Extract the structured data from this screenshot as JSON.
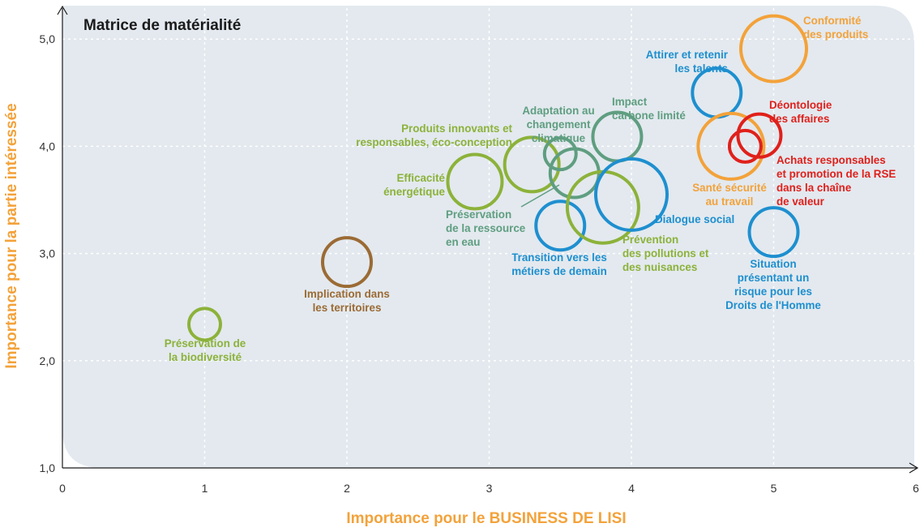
{
  "colors": {
    "green": "#8cb23a",
    "teal": "#5f9e80",
    "blue": "#1e8fcf",
    "orange": "#f3a23a",
    "red": "#e0201b",
    "brown": "#9b6b34",
    "panel": "#e3e9ef",
    "grid": "#ffffff",
    "axis_title": "#f3a23a"
  },
  "chart_data": {
    "type": "scatter",
    "title": "Matrice de matérialité",
    "xlabel": "Importance pour le BUSINESS DE LISI",
    "ylabel": "Importance pour la partie intéressée",
    "xlim": [
      0,
      6
    ],
    "ylim": [
      1,
      5.3
    ],
    "x_ticks": [
      "0",
      "1",
      "2",
      "3",
      "4",
      "5",
      "6"
    ],
    "y_ticks": [
      {
        "value": 1,
        "label": "1,0"
      },
      {
        "value": 2,
        "label": "2,0"
      },
      {
        "value": 3,
        "label": "3,0"
      },
      {
        "value": 4,
        "label": "4,0"
      },
      {
        "value": 5,
        "label": "5,0"
      }
    ],
    "grid": true,
    "points": [
      {
        "label": [
          "Préservation de",
          "la biodiversité"
        ],
        "x": 1.0,
        "y": 2.34,
        "size": 0.3,
        "color": "green"
      },
      {
        "label": [
          "Implication dans",
          "les territoires"
        ],
        "x": 2.0,
        "y": 2.92,
        "size": 0.6,
        "color": "brown"
      },
      {
        "label": [
          "Efficacité",
          "énergétique"
        ],
        "x": 2.9,
        "y": 3.67,
        "size": 0.7,
        "color": "green"
      },
      {
        "label": [
          "Produits innovants et",
          "responsables, éco-conception"
        ],
        "x": 3.3,
        "y": 3.83,
        "size": 0.7,
        "color": "green"
      },
      {
        "label": [
          "Adaptation au",
          "changement",
          "climatique"
        ],
        "x": 3.5,
        "y": 3.93,
        "size": 0.3,
        "color": "teal"
      },
      {
        "label": [
          "Préservation",
          "de la ressource",
          "en eau"
        ],
        "x": 3.6,
        "y": 3.75,
        "size": 0.6,
        "color": "teal"
      },
      {
        "label": [
          "Impact",
          "carbone limité"
        ],
        "x": 3.9,
        "y": 4.09,
        "size": 0.6,
        "color": "teal"
      },
      {
        "label": [
          "Transition vers les",
          "métiers de demain"
        ],
        "x": 3.5,
        "y": 3.26,
        "size": 0.6,
        "color": "blue"
      },
      {
        "label": [
          "Prévention",
          "des pollutions et",
          "des nuisances"
        ],
        "x": 3.8,
        "y": 3.43,
        "size": 1.0,
        "color": "green"
      },
      {
        "label": [
          "Dialogue social"
        ],
        "x": 4.0,
        "y": 3.55,
        "size": 1.0,
        "color": "blue"
      },
      {
        "label": [
          "Attirer et retenir",
          "les talents"
        ],
        "x": 4.6,
        "y": 4.5,
        "size": 0.6,
        "color": "blue"
      },
      {
        "label": [
          "Conformité",
          "des produits"
        ],
        "x": 5.0,
        "y": 4.91,
        "size": 0.9,
        "color": "orange"
      },
      {
        "label": [
          "Santé sécurité",
          "au travail"
        ],
        "x": 4.7,
        "y": 4.0,
        "size": 0.9,
        "color": "orange"
      },
      {
        "label": [
          "Déontologie",
          "des affaires"
        ],
        "x": 4.9,
        "y": 4.1,
        "size": 0.5,
        "color": "red"
      },
      {
        "label": [
          "Achats responsables",
          "et promotion de la RSE",
          "dans la chaîne",
          "de valeur"
        ],
        "x": 4.8,
        "y": 4.0,
        "size": 0.3,
        "color": "red"
      },
      {
        "label": [
          "Situation",
          "présentant un",
          "risque pour les",
          "Droits de l'Homme"
        ],
        "x": 5.0,
        "y": 3.2,
        "size": 0.6,
        "color": "blue"
      }
    ]
  }
}
